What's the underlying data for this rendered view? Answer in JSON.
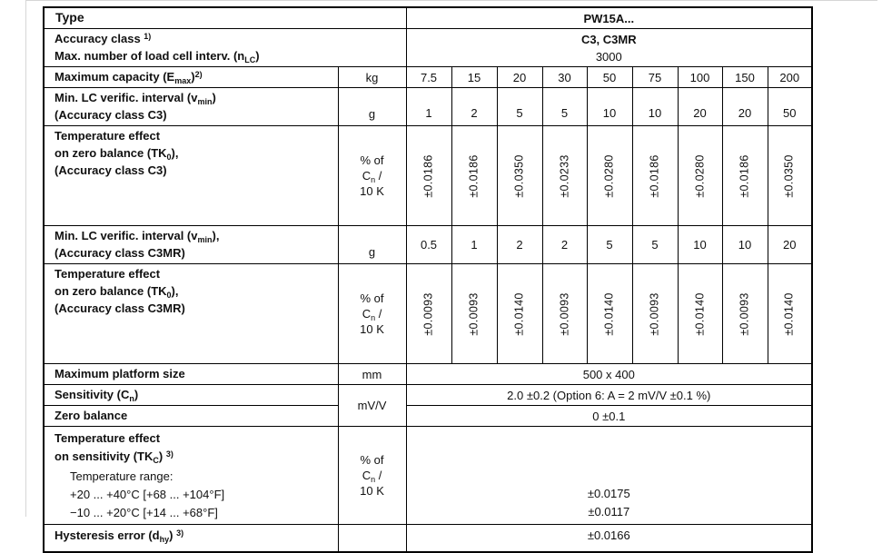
{
  "table": {
    "type_row": {
      "label": "Type",
      "value": "PW15A..."
    },
    "accuracy": {
      "label1_html": "Accuracy class <sup>1)</sup>",
      "label2_html": "Max. number of load cell interv. (n<sub>LC</sub>)",
      "value1": "C3, C3MR",
      "value2": "3000"
    },
    "capacity": {
      "label_html": "Maximum capacity (E<sub>max</sub>)<sup>2)</sup>",
      "unit": "kg",
      "values": [
        "7.5",
        "15",
        "20",
        "30",
        "50",
        "75",
        "100",
        "150",
        "200"
      ]
    },
    "vmin_c3": {
      "label1_html": "Min. LC verific. interval (v<sub>min</sub>)",
      "label2": "(Accuracy class C3)",
      "unit": "g",
      "values": [
        "1",
        "2",
        "5",
        "5",
        "10",
        "10",
        "20",
        "20",
        "50"
      ]
    },
    "tk0_c3": {
      "label1": "Temperature effect",
      "label2_html": "on zero balance (TK<sub>0</sub>),",
      "label3": "(Accuracy class C3)",
      "unit_html": "% of<br>C<sub>n</sub> /<br>10 K",
      "values": [
        "±0.0186",
        "±0.0186",
        "±0.0350",
        "±0.0233",
        "±0.0280",
        "±0.0186",
        "±0.0280",
        "±0.0186",
        "±0.0350"
      ]
    },
    "vmin_c3mr": {
      "label1_html": "Min. LC verific. interval (v<sub>min</sub>),",
      "label2": "(Accuracy class C3MR)",
      "unit": "g",
      "values": [
        "0.5",
        "1",
        "2",
        "2",
        "5",
        "5",
        "10",
        "10",
        "20"
      ]
    },
    "tk0_c3mr": {
      "label1": "Temperature effect",
      "label2_html": "on zero balance (TK<sub>0</sub>),",
      "label3": "(Accuracy class C3MR)",
      "unit_html": "% of<br>C<sub>n</sub> /<br>10 K",
      "values": [
        "±0.0093",
        "±0.0093",
        "±0.0140",
        "±0.0093",
        "±0.0140",
        "±0.0093",
        "±0.0140",
        "±0.0093",
        "±0.0140"
      ]
    },
    "platform": {
      "label": "Maximum platform size",
      "unit": "mm",
      "value": "500 x 400"
    },
    "sensitivity": {
      "label_html": "Sensitivity (C<sub>n</sub>)",
      "unit": "mV/V",
      "value": "2.0 ±0.2 (Option 6: A = 2 mV/V ±0.1 %)"
    },
    "zero_balance": {
      "label": "Zero balance",
      "value": "0 ±0.1"
    },
    "tkc": {
      "label1": "Temperature effect",
      "label2_html": "on sensitivity (TK<sub>C</sub>) <sup>3)</sup>",
      "sub1": "Temperature range:",
      "sub2": "+20 ... +40°C [+68 ... +104°F]",
      "sub3": "−10 ... +20°C [+14 ... +68°F]",
      "unit_html": "% of<br>C<sub>n</sub> /<br>10 K",
      "value1": "±0.0175",
      "value2": "±0.0117"
    },
    "partial_row": {
      "label_html": "Hysteresis error (d<sub>hy</sub>) <sup>3)</sup>",
      "value": "±0.0166"
    }
  }
}
